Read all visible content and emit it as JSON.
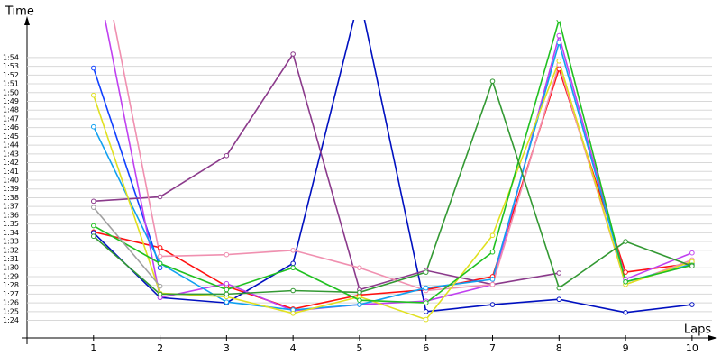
{
  "chart_data": {
    "type": "line",
    "y_label": "Time",
    "x_label": "Laps",
    "x": [
      1,
      2,
      3,
      4,
      5,
      6,
      7,
      8,
      9,
      10
    ],
    "xlim": [
      0,
      10.3
    ],
    "xticks": [
      1,
      2,
      3,
      4,
      5,
      6,
      7,
      8,
      9,
      10
    ],
    "ylim": [
      82,
      118
    ],
    "yticks": [
      {
        "value": 84,
        "label": "1:24"
      },
      {
        "value": 85,
        "label": "1:25"
      },
      {
        "value": 86,
        "label": "1:26"
      },
      {
        "value": 87,
        "label": "1:27"
      },
      {
        "value": 88,
        "label": "1:28"
      },
      {
        "value": 89,
        "label": "1:29"
      },
      {
        "value": 90,
        "label": "1:30"
      },
      {
        "value": 91,
        "label": "1:31"
      },
      {
        "value": 92,
        "label": "1:32"
      },
      {
        "value": 93,
        "label": "1:33"
      },
      {
        "value": 94,
        "label": "1:34"
      },
      {
        "value": 95,
        "label": "1:35"
      },
      {
        "value": 96,
        "label": "1:36"
      },
      {
        "value": 97,
        "label": "1:37"
      },
      {
        "value": 98,
        "label": "1:38"
      },
      {
        "value": 99,
        "label": "1:39"
      },
      {
        "value": 100,
        "label": "1:40"
      },
      {
        "value": 101,
        "label": "1:41"
      },
      {
        "value": 102,
        "label": "1:42"
      },
      {
        "value": 103,
        "label": "1:43"
      },
      {
        "value": 104,
        "label": "1:44"
      },
      {
        "value": 105,
        "label": "1:45"
      },
      {
        "value": 106,
        "label": "1:46"
      },
      {
        "value": 107,
        "label": "1:47"
      },
      {
        "value": 108,
        "label": "1:48"
      },
      {
        "value": 109,
        "label": "1:49"
      },
      {
        "value": 110,
        "label": "1:50"
      },
      {
        "value": 111,
        "label": "1:51"
      },
      {
        "value": 112,
        "label": "1:52"
      },
      {
        "value": 113,
        "label": "1:53"
      },
      {
        "value": 114,
        "label": "1:54"
      }
    ],
    "grid": true,
    "series": [
      {
        "color": "#ff1010",
        "values": [
          94.1,
          92.3,
          87.9,
          85.3,
          86.9,
          87.5,
          89.0,
          112.7,
          89.5,
          90.5
        ]
      },
      {
        "color": "#1040ff",
        "values": [
          112.8,
          90.0,
          null,
          null,
          null,
          null,
          null,
          null,
          null,
          null
        ]
      },
      {
        "color": "#0010c0",
        "values": [
          94.0,
          86.6,
          86.0,
          90.5,
          121.0,
          85.0,
          85.8,
          86.4,
          84.9,
          85.8
        ]
      },
      {
        "color": "#8b3a8b",
        "values": [
          97.6,
          98.1,
          102.8,
          114.4,
          87.5,
          89.7,
          88.1,
          89.4,
          null,
          null
        ]
      },
      {
        "color": "#c040f0",
        "values": [
          125.0,
          86.6,
          88.2,
          85.1,
          85.8,
          86.2,
          88.1,
          116.5,
          88.7,
          91.7
        ]
      },
      {
        "color": "#f090b0",
        "values": [
          130.0,
          91.3,
          91.5,
          92.0,
          90.0,
          87.4,
          88.1,
          113.2,
          88.1,
          90.9
        ]
      },
      {
        "color": "#10a0f0",
        "values": [
          106.1,
          90.5,
          86.1,
          85.2,
          85.8,
          87.7,
          88.7,
          115.7,
          88.4,
          90.4
        ]
      },
      {
        "color": "#e0e020",
        "values": [
          109.7,
          87.1,
          86.7,
          84.8,
          86.7,
          84.1,
          93.7,
          113.6,
          88.1,
          90.7
        ]
      },
      {
        "color": "#20c020",
        "values": [
          94.8,
          90.5,
          87.5,
          90.0,
          86.3,
          86.0,
          91.8,
          118.3,
          88.4,
          90.3
        ]
      },
      {
        "color": "#339933",
        "values": [
          93.6,
          87.0,
          87.0,
          87.4,
          87.2,
          89.5,
          111.3,
          87.7,
          93.0,
          90.2
        ]
      },
      {
        "color": "#a0a0a0",
        "values": [
          96.9,
          87.9,
          null,
          null,
          null,
          null,
          null,
          null,
          null,
          null
        ]
      }
    ]
  }
}
